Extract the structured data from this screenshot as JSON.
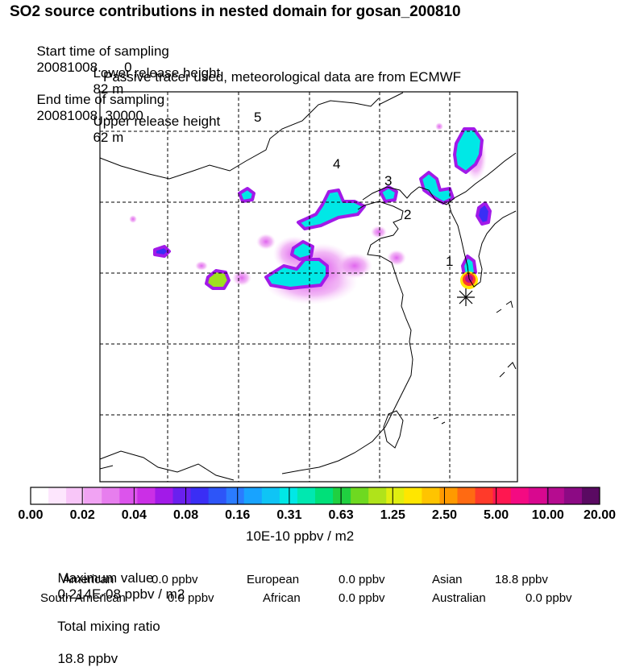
{
  "title": "SO2 source contributions in nested domain for gosan_200810",
  "sampling": {
    "start_label": "Start time of sampling",
    "start_value": "20081008.      0",
    "end_label": "End time of sampling",
    "end_value": "20081008. 30000"
  },
  "release": {
    "lower_label": "Lower release height",
    "lower_value": "82 m",
    "upper_label": "Upper release height",
    "upper_value": "62 m"
  },
  "note": "Passive tracer used, meteorological data are from ECMWF",
  "colorbar": {
    "colors": [
      "#ffffff",
      "#fde6fd",
      "#f8c6f8",
      "#f1a3f3",
      "#e77eee",
      "#dc54ec",
      "#cb2fe6",
      "#a21ae8",
      "#6a20ee",
      "#3a2ef5",
      "#2d55f8",
      "#2a7cff",
      "#18a3ff",
      "#0fc4f5",
      "#00e8e6",
      "#00e8b0",
      "#00e079",
      "#20d040",
      "#6ed920",
      "#b0e31a",
      "#e0ee10",
      "#ffe600",
      "#ffc400",
      "#ff9a00",
      "#ff6a12",
      "#ff3a2a",
      "#ff1750",
      "#f40a82",
      "#d8088f",
      "#b60c90",
      "#8c0a84",
      "#5a0a62"
    ],
    "ticks": [
      "0.00",
      "0.02",
      "0.04",
      "0.08",
      "0.16",
      "0.31",
      "0.63",
      "1.25",
      "2.50",
      "5.00",
      "10.00",
      "20.00"
    ],
    "units": "10E-10 ppbv / m2"
  },
  "map": {
    "lon_lines": 5,
    "lat_lines": 5,
    "region_labels": [
      "1",
      "2",
      "3",
      "4",
      "5"
    ],
    "receptor_marker": "asterisk"
  },
  "summary": {
    "max_label": "Maximum value",
    "max_value": "0.214E-08 ppbv / m2",
    "total_label": "Total mixing ratio",
    "total_value": "18.8 ppbv",
    "american_label": "American",
    "american_value": "0.0 ppbv",
    "european_label": "European",
    "european_value": "0.0 ppbv",
    "asian_label": "Asian",
    "asian_value": "18.8 ppbv",
    "south_american_label": "South American",
    "south_american_value": "0.0 ppbv",
    "african_label": "African",
    "african_value": "0.0 ppbv",
    "australian_label": "Australian",
    "australian_value": "0.0 ppbv"
  },
  "chart_data": {
    "type": "heatmap",
    "title": "SO2 source contributions in nested domain for gosan_200810",
    "colorbar_ticks": [
      0.0,
      0.02,
      0.04,
      0.08,
      0.16,
      0.31,
      0.63,
      1.25,
      2.5,
      5.0,
      10.0,
      20.0
    ],
    "colorbar_units": "10E-10 ppbv / m2",
    "grid": true,
    "max_value": "0.214E-08 ppbv / m2",
    "total_mixing_ratio": "18.8 ppbv",
    "region_labels": [
      "1",
      "2",
      "3",
      "4",
      "5"
    ]
  }
}
